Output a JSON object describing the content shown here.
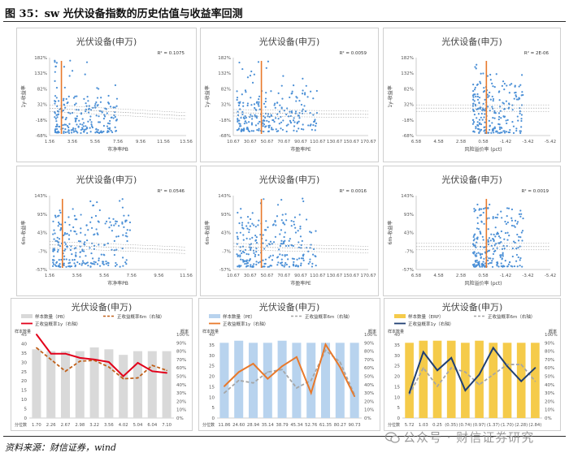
{
  "figure": {
    "title": "图 35：sw 光伏设备指数的历史估值与收益率回测",
    "source": "资料来源：财信证券，wind",
    "watermark": "公众号 · 财信证券研究"
  },
  "colors": {
    "scatter": "#4a8fd6",
    "vline": "#e8792b",
    "trend": "#9a9a9a",
    "bar_gray": "#d9d9d9",
    "bar_blue": "#b8d3ee",
    "bar_yellow": "#f5cb4a",
    "red": "#e2001a",
    "orange": "#e8792b",
    "dashed_brown": "#c0601a",
    "navy": "#1f3f73",
    "dashed_gray": "#a6a6a6"
  },
  "chart_data": [
    {
      "id": "s1",
      "type": "scatter",
      "title": "光伏设备(申万)",
      "r2": "R² = 0.1075",
      "xlabel": "市净率PB",
      "ylabel": "1y-收益率",
      "xticks": [
        "1.56",
        "3.56",
        "5.56",
        "7.56",
        "9.56",
        "11.56",
        "13.56"
      ],
      "yticks": [
        "182%",
        "132%",
        "82%",
        "32%",
        "-18%",
        "-68%"
      ],
      "xlim": [
        1.56,
        13.56
      ],
      "ylim": [
        -68,
        182
      ],
      "vline": 2.6,
      "cluster": {
        "x": [
          2.0,
          7.5
        ],
        "y": [
          -60,
          60
        ],
        "n": 230
      },
      "trend": [
        [
          1.56,
          20
        ],
        [
          13.56,
          -5
        ]
      ]
    },
    {
      "id": "s2",
      "type": "scatter",
      "title": "光伏设备(申万)",
      "r2": "R² = 0.0059",
      "xlabel": "市盈率PE",
      "ylabel": "1y-收益率",
      "xticks": [
        "10.67",
        "30.67",
        "50.67",
        "70.67",
        "90.67",
        "110.67",
        "130.67",
        "150.67",
        "170.67"
      ],
      "yticks": [
        "182%",
        "132%",
        "82%",
        "32%",
        "-18%",
        "-68%"
      ],
      "xlim": [
        10.67,
        170.67
      ],
      "ylim": [
        -68,
        182
      ],
      "vline": 44,
      "cluster": {
        "x": [
          15,
          110
        ],
        "y": [
          -55,
          80
        ],
        "n": 240
      },
      "trend": [
        [
          10.67,
          5
        ],
        [
          170.67,
          0
        ]
      ]
    },
    {
      "id": "s3",
      "type": "scatter",
      "title": "光伏设备(申万)",
      "r2": "R² = 2E-06",
      "xlabel": "风险溢价率 (pct)",
      "ylabel": "1y-收益率",
      "xticks": [
        "6.58",
        "4.58",
        "2.58",
        "0.58",
        "-1.42",
        "-3.42",
        "-5.42"
      ],
      "yticks": [
        "182%",
        "132%",
        "82%",
        "32%",
        "-18%",
        "-68%"
      ],
      "xlim": [
        6.58,
        -5.42
      ],
      "ylim": [
        -68,
        182
      ],
      "vline": 0.3,
      "cluster": {
        "x": [
          1.5,
          -3.0
        ],
        "y": [
          -60,
          100
        ],
        "n": 230
      },
      "trend": [
        [
          6.58,
          20
        ],
        [
          -5.42,
          20
        ]
      ]
    },
    {
      "id": "s4",
      "type": "scatter",
      "title": "光伏设备(申万)",
      "r2": "R² = 0.0546",
      "xlabel": "市净率PB",
      "ylabel": "6m-收益率",
      "xticks": [
        "1.56",
        "3.56",
        "5.56",
        "7.56",
        "9.56",
        "11.56"
      ],
      "yticks": [
        "143%",
        "93%",
        "43%",
        "-7%",
        "-57%"
      ],
      "xlim": [
        1.56,
        11.56
      ],
      "ylim": [
        -57,
        143
      ],
      "vline": 2.5,
      "cluster": {
        "x": [
          1.8,
          7.5
        ],
        "y": [
          -50,
          90
        ],
        "n": 240
      },
      "trend": [
        [
          1.56,
          10
        ],
        [
          11.56,
          -5
        ]
      ]
    },
    {
      "id": "s5",
      "type": "scatter",
      "title": "光伏设备(申万)",
      "r2": "R² = 0.0016",
      "xlabel": "市盈率PE",
      "ylabel": "6m-收益率",
      "xticks": [
        "10.67",
        "30.67",
        "50.67",
        "70.67",
        "90.67",
        "110.67",
        "130.67",
        "150.67",
        "170.67"
      ],
      "yticks": [
        "143%",
        "93%",
        "43%",
        "-7%",
        "-57%"
      ],
      "xlim": [
        10.67,
        170.67
      ],
      "ylim": [
        -57,
        143
      ],
      "vline": 44,
      "cluster": {
        "x": [
          15,
          110
        ],
        "y": [
          -50,
          80
        ],
        "n": 250
      },
      "trend": [
        [
          10.67,
          5
        ],
        [
          170.67,
          -3
        ]
      ]
    },
    {
      "id": "s6",
      "type": "scatter",
      "title": "光伏设备(申万)",
      "r2": "R² = 0.0019",
      "xlabel": "风险溢价率 (pct)",
      "ylabel": "6m-收益率",
      "xticks": [
        "6.58",
        "4.58",
        "2.58",
        "0.58",
        "-1.42",
        "-3.42",
        "-5.42"
      ],
      "yticks": [
        "143%",
        "93%",
        "43%",
        "-7%",
        "-57%"
      ],
      "xlim": [
        6.58,
        -5.42
      ],
      "ylim": [
        -57,
        143
      ],
      "vline": 0.3,
      "cluster": {
        "x": [
          1.5,
          -3.0
        ],
        "y": [
          -50,
          110
        ],
        "n": 240
      },
      "trend": [
        [
          6.58,
          5
        ],
        [
          -5.42,
          5
        ]
      ]
    },
    {
      "id": "c1",
      "type": "bar",
      "title": "光伏设备(申万)",
      "legend": [
        "样本数量（PB）",
        "正收益概率6m（右轴）",
        "正收益概率1y（右轴）"
      ],
      "left_axis_label": "样本数量",
      "right_axis_label": "概率",
      "categories_label": "分位数",
      "categories": [
        "1.70",
        "2.26",
        "2.67",
        "2.98",
        "3.22",
        "3.56",
        "4.02",
        "5.04",
        "6.04",
        "7.10"
      ],
      "bars": [
        37,
        36,
        36,
        36,
        38,
        37,
        34,
        36,
        36,
        36
      ],
      "line_6m": [
        84,
        70,
        56,
        68,
        69,
        61,
        47,
        48,
        63,
        57
      ],
      "line_1y": [
        100,
        77,
        77,
        72,
        70,
        67,
        50,
        66,
        56,
        54
      ],
      "ylim_left": [
        0,
        45
      ],
      "ylim_right": [
        0,
        100
      ],
      "yticks_left": [
        "45",
        "40",
        "35",
        "30",
        "25",
        "20",
        "15",
        "10",
        "5",
        "0"
      ],
      "yticks_right": [
        "100%",
        "90%",
        "80%",
        "70%",
        "60%",
        "50%",
        "40%",
        "30%",
        "20%",
        "10%",
        "0%"
      ]
    },
    {
      "id": "c2",
      "type": "bar",
      "title": "光伏设备(申万)",
      "legend": [
        "样本数量（PE）",
        "正收益概率6m（右轴）",
        "正收益概率1y（右轴）"
      ],
      "left_axis_label": "样本数量",
      "right_axis_label": "概率",
      "categories_label": "分位数",
      "categories": [
        "11.86",
        "24.60",
        "28.94",
        "35.14",
        "38.79",
        "45.34",
        "52.76",
        "61.35",
        "80.27",
        "90.73"
      ],
      "bars": [
        36,
        37,
        36,
        36,
        37,
        36,
        36,
        36,
        36,
        36
      ],
      "line_6m": [
        30,
        45,
        42,
        55,
        58,
        36,
        45,
        81,
        67,
        28
      ],
      "line_1y": [
        38,
        55,
        65,
        47,
        62,
        73,
        30,
        88,
        61,
        26
      ],
      "ylim_left": [
        0,
        40
      ],
      "ylim_right": [
        0,
        100
      ],
      "yticks_left": [
        "40",
        "35",
        "30",
        "25",
        "20",
        "15",
        "10",
        "5",
        "0"
      ],
      "yticks_right": [
        "100%",
        "90%",
        "80%",
        "70%",
        "60%",
        "50%",
        "40%",
        "30%",
        "20%",
        "10%",
        "0%"
      ]
    },
    {
      "id": "c3",
      "type": "bar",
      "title": "光伏设备(申万)",
      "legend": [
        "样本数量（ERP）",
        "正收益概率6m（右轴）",
        "正收益概率1y（右轴）"
      ],
      "left_axis_label": "样本数量",
      "right_axis_label": "概率",
      "categories_label": "分位数",
      "categories": [
        "5.72",
        "1.03",
        "0.25",
        "(0.35)",
        "(0.74)",
        "(0.97)",
        "(1.37)",
        "(1.70)",
        "(2.28)",
        "(2.84)"
      ],
      "bars": [
        36,
        37,
        37,
        37,
        36,
        37,
        36,
        36,
        36,
        36
      ],
      "line_6m": [
        28,
        60,
        38,
        60,
        55,
        40,
        52,
        64,
        64,
        44
      ],
      "line_1y": [
        30,
        79,
        57,
        72,
        33,
        52,
        84,
        62,
        44,
        60
      ],
      "ylim_left": [
        0,
        40
      ],
      "ylim_right": [
        0,
        100
      ],
      "yticks_left": [
        "40",
        "35",
        "30",
        "25",
        "20",
        "15",
        "10",
        "5",
        "0"
      ],
      "yticks_right": [
        "100%",
        "90%",
        "80%",
        "70%",
        "60%",
        "50%",
        "40%",
        "30%",
        "20%",
        "10%",
        "0%"
      ]
    }
  ]
}
